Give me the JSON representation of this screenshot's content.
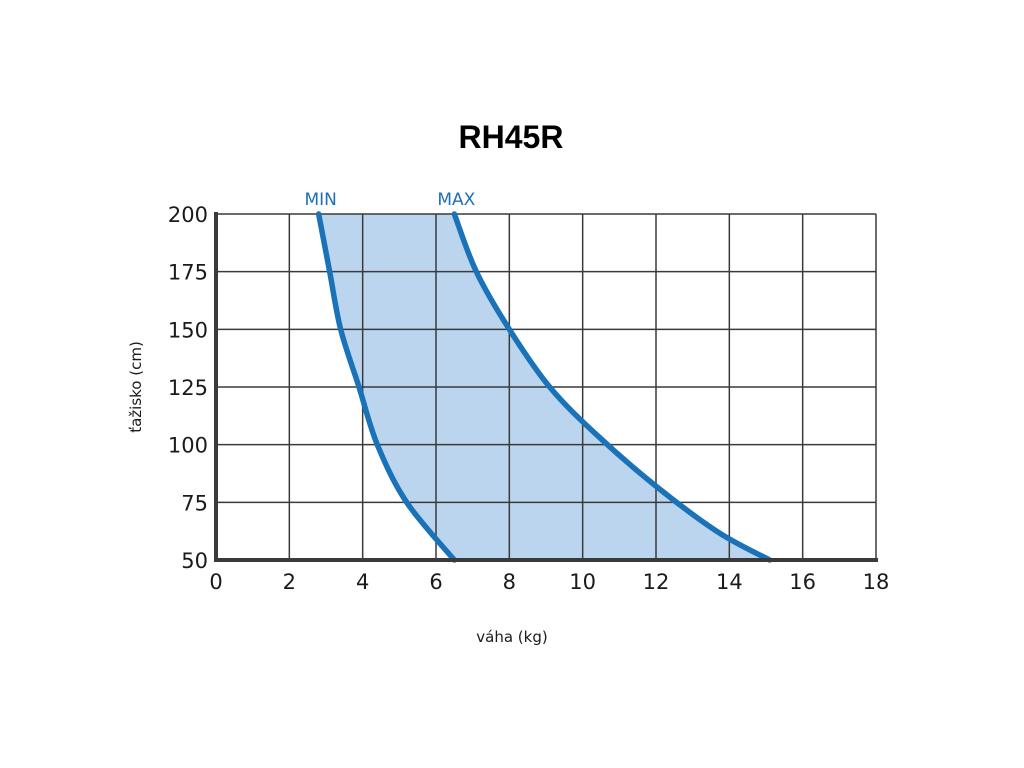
{
  "chart_data": {
    "type": "area",
    "title": "RH45R",
    "xlabel": "váha (kg)",
    "ylabel": "ťažisko (cm)",
    "xlim": [
      0,
      18
    ],
    "ylim": [
      50,
      200
    ],
    "x_ticks": [
      "0",
      "2",
      "4",
      "6",
      "8",
      "10",
      "12",
      "14",
      "16",
      "18"
    ],
    "y_ticks": [
      "200",
      "175",
      "150",
      "125",
      "100",
      "75",
      "50"
    ],
    "grid": true,
    "band_color": "#bcd5ee",
    "line_color": "#1a72b8",
    "series": [
      {
        "name": "MIN",
        "points": [
          {
            "x": 2.8,
            "y": 200
          },
          {
            "x": 3.1,
            "y": 175
          },
          {
            "x": 3.4,
            "y": 150
          },
          {
            "x": 3.9,
            "y": 125
          },
          {
            "x": 4.4,
            "y": 100
          },
          {
            "x": 5.2,
            "y": 75
          },
          {
            "x": 6.5,
            "y": 50
          }
        ]
      },
      {
        "name": "MAX",
        "points": [
          {
            "x": 6.5,
            "y": 200
          },
          {
            "x": 7.1,
            "y": 175
          },
          {
            "x": 8.0,
            "y": 150
          },
          {
            "x": 9.1,
            "y": 125
          },
          {
            "x": 10.4,
            "y": 104
          },
          {
            "x": 12.0,
            "y": 82
          },
          {
            "x": 13.7,
            "y": 62
          },
          {
            "x": 15.1,
            "y": 50
          }
        ]
      }
    ]
  }
}
